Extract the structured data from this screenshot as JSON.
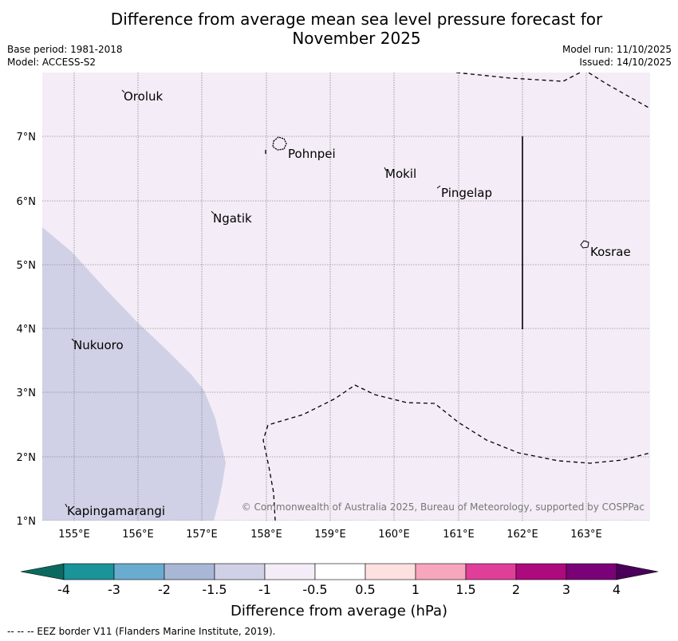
{
  "title_line1": "Difference from average mean sea level pressure forecast for",
  "title_line2": "November 2025",
  "meta_left": {
    "base_period": "Base period: 1981-2018",
    "model": "Model: ACCESS-S2"
  },
  "meta_right": {
    "model_run": "Model run: 11/10/2025",
    "issued": "Issued: 14/10/2025"
  },
  "places": {
    "oroluk": "Oroluk",
    "pohnpei": "Pohnpei",
    "mokil": "Mokil",
    "pingelap": "Pingelap",
    "ngatik": "Ngatik",
    "kosrae": "Kosrae",
    "nukuoro": "Nukuoro",
    "kapingamarangi": "Kapingamarangi"
  },
  "lat_labels": [
    "7°N",
    "6°N",
    "5°N",
    "4°N",
    "3°N",
    "2°N",
    "1°N"
  ],
  "lon_labels": [
    "155°E",
    "156°E",
    "157°E",
    "158°E",
    "159°E",
    "160°E",
    "161°E",
    "162°E",
    "163°E"
  ],
  "copyright": "© Commonwealth of Australia 2025, Bureau of Meteorology, supported by COSPPac",
  "colorbar": {
    "title": "Difference from average (hPa)",
    "labels": [
      "-4",
      "-3",
      "-2",
      "-1.5",
      "-1",
      "-0.5",
      "0.5",
      "1",
      "1.5",
      "2",
      "3",
      "4"
    ],
    "colors": [
      "#1a9399",
      "#6aabd0",
      "#a9b7d6",
      "#d0d1e6",
      "#f4ecf6",
      "#ffffff",
      "#fde0e0",
      "#f7a6bd",
      "#df3f98",
      "#ad0a7d",
      "#7a0177"
    ],
    "under_color": "#0b6a60",
    "over_color": "#4a005a"
  },
  "footer": "--  --  -- EEZ border V11 (Flanders Marine Institute, 2019)."
}
